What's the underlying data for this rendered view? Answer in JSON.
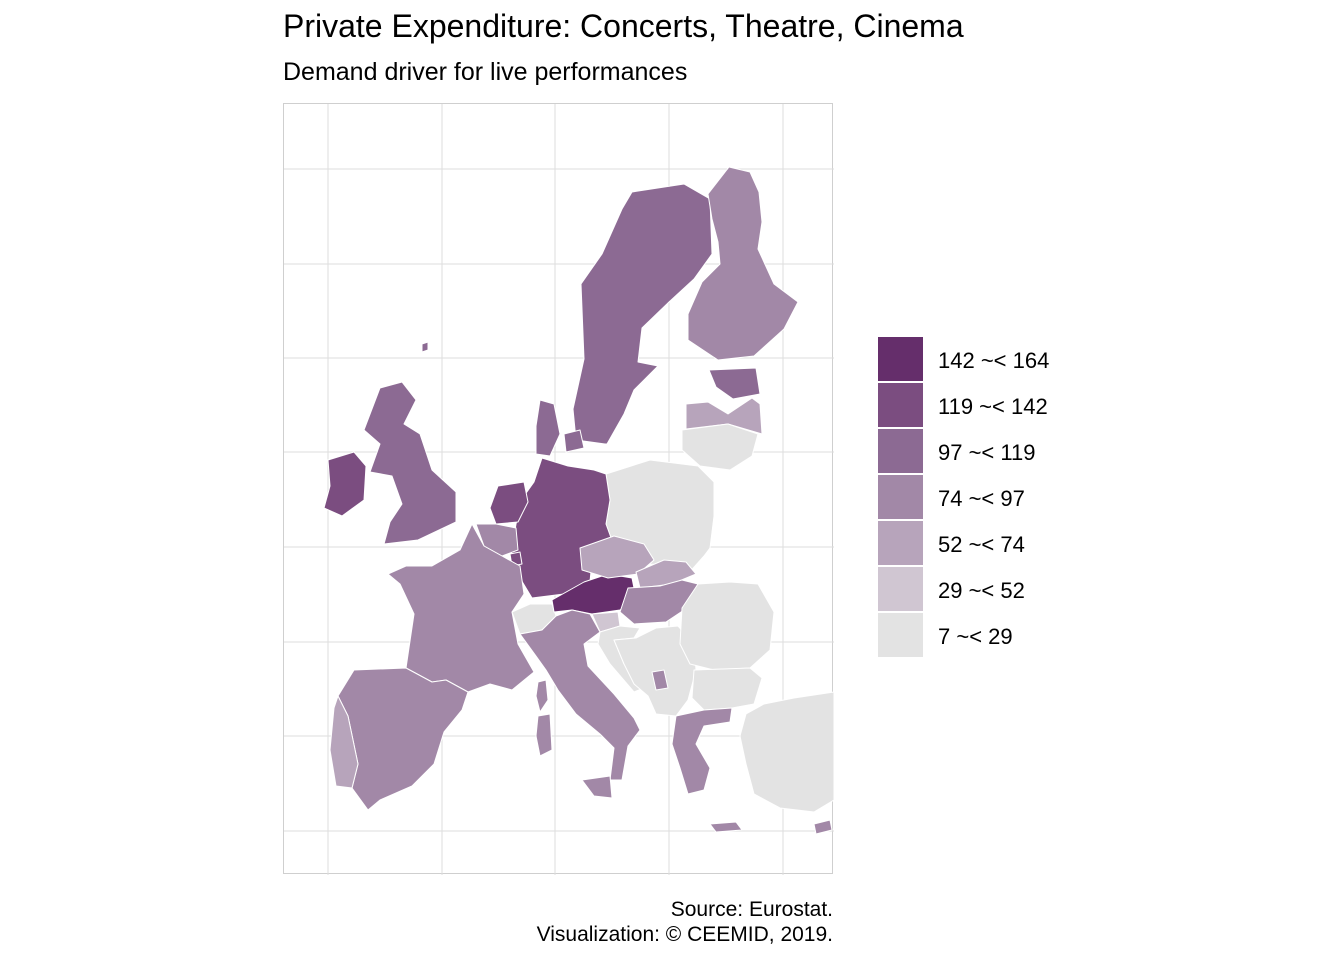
{
  "title": "Private Expenditure: Concerts, Theatre, Cinema",
  "subtitle": "Demand driver for live performances",
  "legend": {
    "items": [
      {
        "label": "142 ~< 164",
        "color": "#652e6b"
      },
      {
        "label": "119 ~< 142",
        "color": "#7b4d80"
      },
      {
        "label": "97 ~< 119",
        "color": "#8c6a93"
      },
      {
        "label": "74 ~< 97",
        "color": "#a288a7"
      },
      {
        "label": "52 ~< 74",
        "color": "#b7a4bb"
      },
      {
        "label": "29 ~< 52",
        "color": "#d0c6d2"
      },
      {
        "label": "7 ~< 29",
        "color": "#e3e3e3"
      }
    ]
  },
  "caption": {
    "source": "Source: Eurostat.",
    "visualization": "Visualization: © CEEMID, 2019."
  },
  "colors": {
    "grid": "#dedede",
    "border": "#ffffff",
    "panel_border": "#cfcfcf"
  }
}
